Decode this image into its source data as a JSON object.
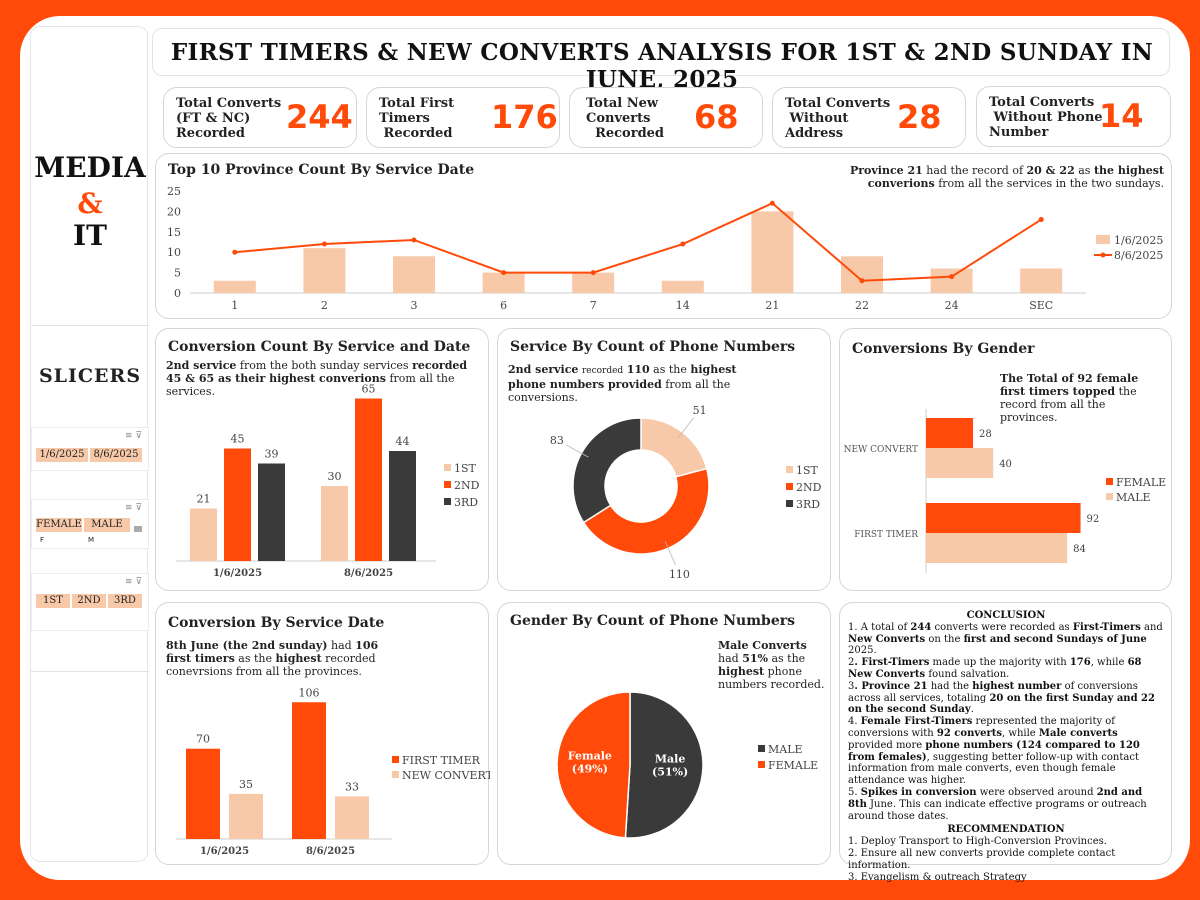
{
  "header": {
    "title": "FIRST TIMERS & NEW CONVERTS ANALYSIS FOR 1ST & 2ND SUNDAY IN JUNE, 2025"
  },
  "sidebar": {
    "brand_line1": "MEDIA",
    "brand_line2": "&",
    "brand_line3": "IT",
    "slicers_title": "SLICERS",
    "slicer_dates": [
      "1/6/2025",
      "8/6/2025"
    ],
    "slicer_gender": [
      "FEMALE",
      "MALE"
    ],
    "slicer_gender_sub": [
      "F",
      "M"
    ],
    "slicer_service": [
      "1ST",
      "2ND",
      "3RD"
    ]
  },
  "kpis": [
    {
      "label_lines": [
        "Total Converts",
        "(FT & NC)",
        "Recorded"
      ],
      "value": "244"
    },
    {
      "label_lines": [
        "Total First",
        "Timers",
        "Recorded"
      ],
      "value": "176"
    },
    {
      "label_lines": [
        "Total New",
        "Converts",
        "Recorded"
      ],
      "value": "68"
    },
    {
      "label_lines": [
        "Total Converts",
        "Without",
        "Address"
      ],
      "value": "28"
    },
    {
      "label_lines": [
        "Total Converts",
        "Without Phone",
        "Number"
      ],
      "value": "14"
    }
  ],
  "colors": {
    "orange": "#ff4a0a",
    "peach": "#f7c9a8",
    "dark": "#3a3a3a"
  },
  "chart_data": [
    {
      "type": "bar",
      "title": "Top 10 Province Count By Service Date",
      "categories": [
        "1",
        "2",
        "3",
        "6",
        "7",
        "14",
        "21",
        "22",
        "24",
        "SEC"
      ],
      "series": [
        {
          "name": "1/6/2025",
          "type": "bar",
          "values": [
            3,
            11,
            9,
            5,
            5,
            3,
            20,
            9,
            6,
            6
          ]
        },
        {
          "name": "8/6/2025",
          "type": "line",
          "values": [
            10,
            12,
            13,
            5,
            5,
            12,
            22,
            3,
            4,
            18
          ]
        }
      ],
      "ylim": [
        0,
        25
      ],
      "yticks": [
        0,
        5,
        10,
        15,
        20,
        25
      ],
      "legend": "right",
      "annotation": "Province 21 had the record of 20 & 22 as the highest converions from all the services in the two sundays."
    },
    {
      "type": "bar",
      "title": "Conversion Count By Service and  Date",
      "categories": [
        "1/6/2025",
        "8/6/2025"
      ],
      "series": [
        {
          "name": "1ST",
          "values": [
            21,
            30
          ]
        },
        {
          "name": "2ND",
          "values": [
            45,
            65
          ]
        },
        {
          "name": "3RD",
          "values": [
            39,
            44
          ]
        }
      ],
      "legend": "right",
      "annotation": "2nd service from the both sunday services recorded 45 & 65 as their highest converions from all the services."
    },
    {
      "type": "pie",
      "title": "Service By Count of Phone Numbers",
      "labels": [
        "1ST",
        "2ND",
        "3RD"
      ],
      "values": [
        51,
        110,
        83
      ],
      "legend": "right",
      "annotation": "2nd service recorded 110 as the highest phone numbers provided from all the conversions."
    },
    {
      "type": "bar",
      "title": "Conversions By Gender",
      "orientation": "horizontal",
      "categories": [
        "NEW CONVERT",
        "FIRST TIMER"
      ],
      "series": [
        {
          "name": "FEMALE",
          "values": [
            28,
            92
          ]
        },
        {
          "name": "MALE",
          "values": [
            40,
            84
          ]
        }
      ],
      "legend": "right",
      "annotation": "The Total of 92 female first timers topped the record from all the provinces."
    },
    {
      "type": "bar",
      "title": "Conversion By Service Date",
      "categories": [
        "1/6/2025",
        "8/6/2025"
      ],
      "series": [
        {
          "name": "FIRST TIMER",
          "values": [
            70,
            106
          ]
        },
        {
          "name": "NEW CONVERT",
          "values": [
            35,
            33
          ]
        }
      ],
      "legend": "right",
      "annotation": "8th June (the 2nd sunday) had 106 first timers as the highest recorded conevrsions from all the provinces."
    },
    {
      "type": "pie",
      "title": "Gender By Count of Phone Numbers",
      "labels": [
        "MALE",
        "FEMALE"
      ],
      "values": [
        51,
        49
      ],
      "slice_labels": [
        "Male\n(51%)",
        "Female\n(49%)"
      ],
      "legend": "right",
      "annotation": "Male Converts had 51% as the highest phone numbers recorded."
    }
  ],
  "conclusion": {
    "heading": "CONCLUSION",
    "items": [
      "1. A total of 244 converts were recorded as First-Timers and New Converts on the first and second Sundays of June 2025.",
      "2. First-Timers made up the majority with 176, while 68 New Converts found salvation.",
      "3. Province 21 had the highest number of conversions across all services, totaling 20 on the first Sunday and 22 on the second Sunday.",
      "4. Female First-Timers represented the majority of conversions with 92 converts, while Male converts provided more phone numbers (124 compared to 120 from females), suggesting better follow-up with contact information from male converts, even though female attendance was higher.",
      "5. Spikes in conversion were observed around 2nd and 8th June. This can indicate effective programs or outreach around those dates."
    ],
    "rec_heading": "RECOMMENDATION",
    "recommendations": [
      "1. Deploy Transport to High-Conversion Provinces.",
      "2. Ensure all new converts provide complete contact information.",
      "3. Evangelism & outreach Strategy"
    ]
  }
}
